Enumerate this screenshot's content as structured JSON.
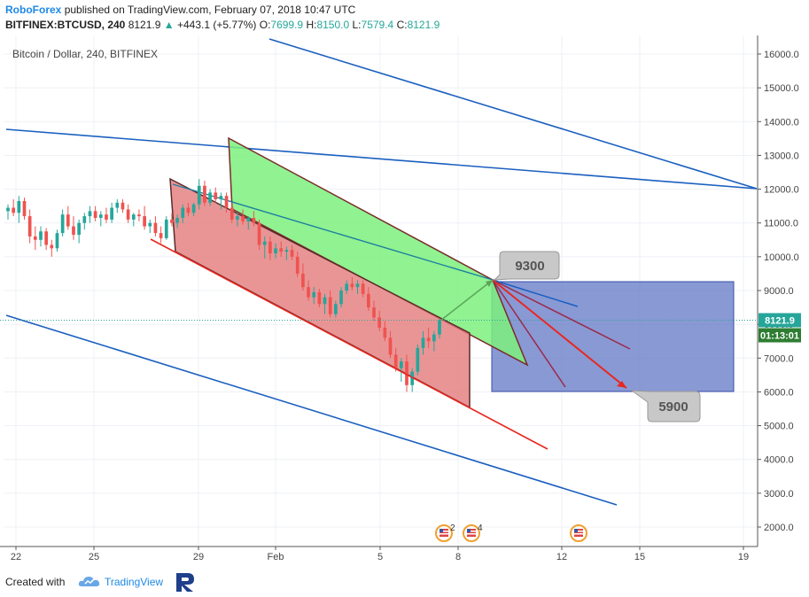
{
  "header": {
    "brand": "RoboForex",
    "published": "published on TradingView.com, February 07, 2018 10:47 UTC",
    "symbol": "BITFINEX:BTCUSD, 240",
    "last": "8121.9",
    "change": "+443.1 (+5.77%)",
    "o_label": "O:",
    "o_value": "7699.9",
    "h_label": "H:",
    "h_value": "8150.0",
    "l_label": "L:",
    "l_value": "7579.4",
    "c_label": "C:",
    "c_value": "8121.9"
  },
  "chart_data": {
    "type": "candlestick",
    "title": "Bitcoin / Dollar, 240, BITFINEX",
    "y_ticks": [
      2000,
      3000,
      4000,
      5000,
      6000,
      7000,
      8000,
      9000,
      10000,
      11000,
      12000,
      13000,
      14000,
      15000,
      16000
    ],
    "y_tick_labels": [
      "2000.0",
      "3000.0",
      "4000.0",
      "5000.0",
      "6000.0",
      "7000.0",
      "8000.0",
      "9000.0",
      "10000.0",
      "11000.0",
      "12000.0",
      "13000.0",
      "14000.0",
      "15000.0",
      "16000.0"
    ],
    "x_tick_labels": [
      "22",
      "25",
      "29",
      "Feb",
      "5",
      "8",
      "12",
      "15",
      "19"
    ],
    "ylim": [
      1500,
      16500
    ],
    "last_price": 8121.9,
    "last_price_label": "8121.9",
    "countdown": "01:13:01",
    "annotations": [
      "9300",
      "5900"
    ],
    "event_badges": [
      "2",
      "4"
    ],
    "colors": {
      "up": "#26a69a",
      "down": "#ef5350",
      "channel": "#1a5fbf",
      "arrow": "#e8271f",
      "target_box": "#5b71c4",
      "pink_zone": "#e47a7a",
      "green_zone": "#7cf07c"
    },
    "candles": [
      {
        "o": 11350,
        "h": 11550,
        "l": 11100,
        "c": 11450
      },
      {
        "o": 11450,
        "h": 11700,
        "l": 11200,
        "c": 11300
      },
      {
        "o": 11300,
        "h": 11800,
        "l": 11000,
        "c": 11650
      },
      {
        "o": 11650,
        "h": 11750,
        "l": 11100,
        "c": 11200
      },
      {
        "o": 11200,
        "h": 11400,
        "l": 10400,
        "c": 10600
      },
      {
        "o": 10600,
        "h": 10900,
        "l": 10200,
        "c": 10500
      },
      {
        "o": 10500,
        "h": 10900,
        "l": 10300,
        "c": 10750
      },
      {
        "o": 10750,
        "h": 10850,
        "l": 10200,
        "c": 10350
      },
      {
        "o": 10350,
        "h": 10500,
        "l": 10000,
        "c": 10250
      },
      {
        "o": 10250,
        "h": 10800,
        "l": 10150,
        "c": 10700
      },
      {
        "o": 10700,
        "h": 11400,
        "l": 10600,
        "c": 11250
      },
      {
        "o": 11250,
        "h": 11500,
        "l": 10800,
        "c": 10900
      },
      {
        "o": 10900,
        "h": 11200,
        "l": 10500,
        "c": 10650
      },
      {
        "o": 10650,
        "h": 11100,
        "l": 10400,
        "c": 11000
      },
      {
        "o": 11000,
        "h": 11300,
        "l": 10800,
        "c": 11200
      },
      {
        "o": 11200,
        "h": 11500,
        "l": 11000,
        "c": 11350
      },
      {
        "o": 11350,
        "h": 11500,
        "l": 11050,
        "c": 11150
      },
      {
        "o": 11150,
        "h": 11350,
        "l": 10900,
        "c": 11250
      },
      {
        "o": 11250,
        "h": 11450,
        "l": 11000,
        "c": 11100
      },
      {
        "o": 11100,
        "h": 11600,
        "l": 11000,
        "c": 11450
      },
      {
        "o": 11450,
        "h": 11700,
        "l": 11300,
        "c": 11600
      },
      {
        "o": 11600,
        "h": 11700,
        "l": 11300,
        "c": 11400
      },
      {
        "o": 11400,
        "h": 11550,
        "l": 11000,
        "c": 11100
      },
      {
        "o": 11100,
        "h": 11300,
        "l": 10900,
        "c": 11250
      },
      {
        "o": 11250,
        "h": 11400,
        "l": 11050,
        "c": 11200
      },
      {
        "o": 11200,
        "h": 11500,
        "l": 10800,
        "c": 10900
      },
      {
        "o": 10900,
        "h": 11100,
        "l": 10700,
        "c": 11000
      },
      {
        "o": 11000,
        "h": 11200,
        "l": 10600,
        "c": 10700
      },
      {
        "o": 10700,
        "h": 10900,
        "l": 10400,
        "c": 10550
      },
      {
        "o": 10550,
        "h": 11200,
        "l": 10500,
        "c": 11100
      },
      {
        "o": 11100,
        "h": 11300,
        "l": 10900,
        "c": 11000
      },
      {
        "o": 11000,
        "h": 11250,
        "l": 10850,
        "c": 11150
      },
      {
        "o": 11150,
        "h": 11550,
        "l": 11000,
        "c": 11450
      },
      {
        "o": 11450,
        "h": 11600,
        "l": 11200,
        "c": 11300
      },
      {
        "o": 11300,
        "h": 11600,
        "l": 11200,
        "c": 11550
      },
      {
        "o": 11550,
        "h": 12300,
        "l": 11400,
        "c": 12100
      },
      {
        "o": 12100,
        "h": 12250,
        "l": 11500,
        "c": 11600
      },
      {
        "o": 11600,
        "h": 12000,
        "l": 11500,
        "c": 11900
      },
      {
        "o": 11900,
        "h": 12050,
        "l": 11600,
        "c": 11700
      },
      {
        "o": 11700,
        "h": 11900,
        "l": 11400,
        "c": 11800
      },
      {
        "o": 11800,
        "h": 11900,
        "l": 11300,
        "c": 11450
      },
      {
        "o": 11450,
        "h": 11600,
        "l": 11000,
        "c": 11100
      },
      {
        "o": 11100,
        "h": 11300,
        "l": 10900,
        "c": 11200
      },
      {
        "o": 11200,
        "h": 11400,
        "l": 10950,
        "c": 11050
      },
      {
        "o": 11050,
        "h": 11200,
        "l": 10800,
        "c": 11150
      },
      {
        "o": 11150,
        "h": 11350,
        "l": 10900,
        "c": 11000
      },
      {
        "o": 11000,
        "h": 11100,
        "l": 10200,
        "c": 10350
      },
      {
        "o": 10350,
        "h": 10600,
        "l": 9950,
        "c": 10450
      },
      {
        "o": 10450,
        "h": 10600,
        "l": 9900,
        "c": 10100
      },
      {
        "o": 10100,
        "h": 10400,
        "l": 9950,
        "c": 10250
      },
      {
        "o": 10250,
        "h": 10450,
        "l": 10000,
        "c": 10150
      },
      {
        "o": 10150,
        "h": 10300,
        "l": 9900,
        "c": 10200
      },
      {
        "o": 10200,
        "h": 10350,
        "l": 9900,
        "c": 10000
      },
      {
        "o": 10000,
        "h": 10150,
        "l": 9400,
        "c": 9500
      },
      {
        "o": 9500,
        "h": 9800,
        "l": 9000,
        "c": 9100
      },
      {
        "o": 9100,
        "h": 9300,
        "l": 8700,
        "c": 8800
      },
      {
        "o": 8800,
        "h": 9100,
        "l": 8600,
        "c": 8950
      },
      {
        "o": 8950,
        "h": 9050,
        "l": 8500,
        "c": 8600
      },
      {
        "o": 8600,
        "h": 8900,
        "l": 8300,
        "c": 8800
      },
      {
        "o": 8800,
        "h": 9000,
        "l": 8200,
        "c": 8300
      },
      {
        "o": 8300,
        "h": 8700,
        "l": 8200,
        "c": 8600
      },
      {
        "o": 8600,
        "h": 9100,
        "l": 8500,
        "c": 9000
      },
      {
        "o": 9000,
        "h": 9300,
        "l": 8900,
        "c": 9200
      },
      {
        "o": 9200,
        "h": 9400,
        "l": 9000,
        "c": 9100
      },
      {
        "o": 9100,
        "h": 9300,
        "l": 8900,
        "c": 9200
      },
      {
        "o": 9200,
        "h": 9300,
        "l": 8800,
        "c": 8900
      },
      {
        "o": 8900,
        "h": 9100,
        "l": 8400,
        "c": 8500
      },
      {
        "o": 8500,
        "h": 8700,
        "l": 8100,
        "c": 8200
      },
      {
        "o": 8200,
        "h": 8400,
        "l": 7800,
        "c": 7900
      },
      {
        "o": 7900,
        "h": 8100,
        "l": 7500,
        "c": 7600
      },
      {
        "o": 7600,
        "h": 7800,
        "l": 7000,
        "c": 7100
      },
      {
        "o": 7100,
        "h": 7300,
        "l": 6600,
        "c": 6700
      },
      {
        "o": 6700,
        "h": 7000,
        "l": 6300,
        "c": 6900
      },
      {
        "o": 6900,
        "h": 7100,
        "l": 6000,
        "c": 6200
      },
      {
        "o": 6200,
        "h": 6700,
        "l": 6000,
        "c": 6600
      },
      {
        "o": 6600,
        "h": 7400,
        "l": 6500,
        "c": 7300
      },
      {
        "o": 7300,
        "h": 7800,
        "l": 7100,
        "c": 7600
      },
      {
        "o": 7600,
        "h": 7900,
        "l": 7300,
        "c": 7500
      },
      {
        "o": 7500,
        "h": 7800,
        "l": 7200,
        "c": 7700
      },
      {
        "o": 7700,
        "h": 8150,
        "l": 7579,
        "c": 8122
      }
    ]
  },
  "footer": {
    "created_label": "Created with",
    "tv_label": "TradingView"
  }
}
